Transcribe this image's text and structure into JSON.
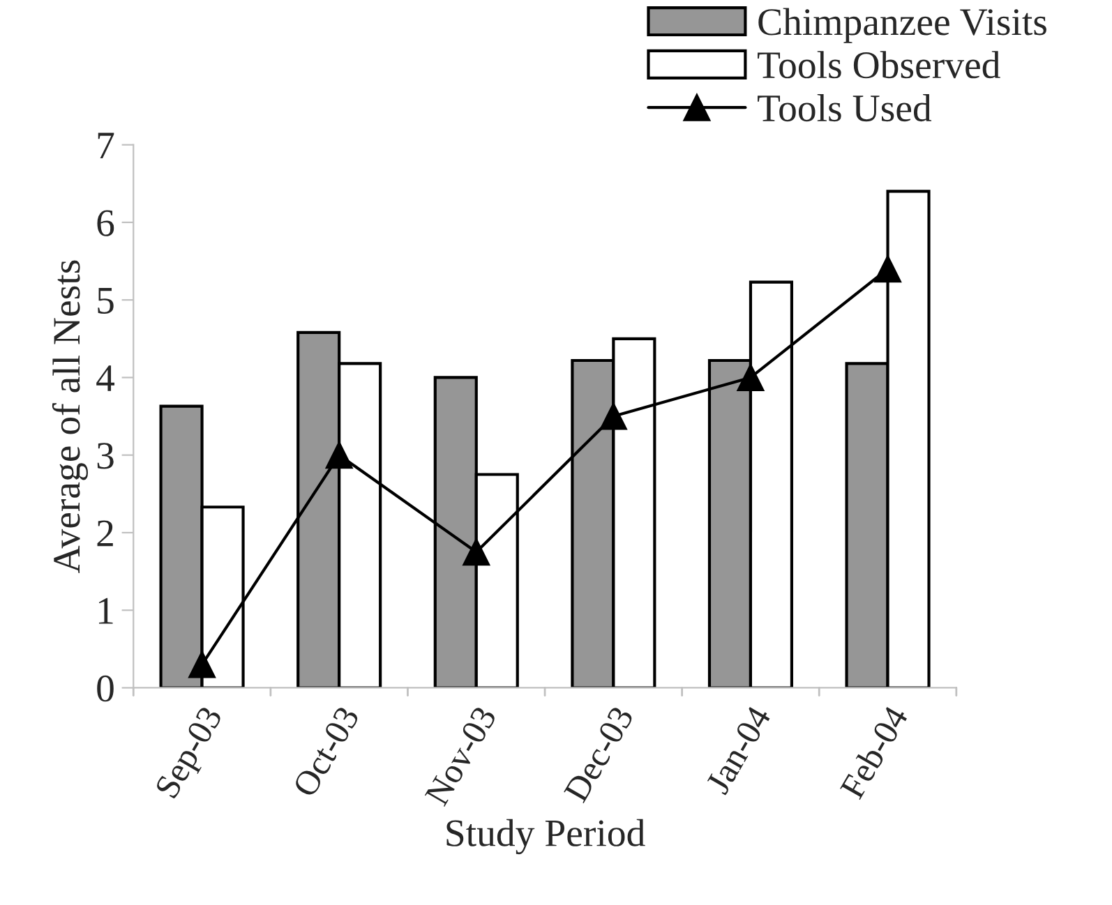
{
  "chart_data": {
    "type": "bar",
    "xlabel": "Study Period",
    "ylabel": "Average of all Nests",
    "categories": [
      "Sep-03",
      "Oct-03",
      "Nov-03",
      "Dec-03",
      "Jan-04",
      "Feb-04"
    ],
    "series": [
      {
        "name": "Chimpanzee Visits",
        "color": "#969696",
        "values": [
          3.63,
          4.58,
          4.0,
          4.22,
          4.22,
          4.18
        ]
      },
      {
        "name": "Tools Observed",
        "color": "#ffffff",
        "values": [
          2.33,
          4.18,
          2.75,
          4.5,
          5.23,
          6.4
        ]
      },
      {
        "name": "Tools Used",
        "type": "line",
        "color": "#000000",
        "marker": "triangle",
        "values": [
          0.3,
          3.0,
          1.75,
          3.5,
          4.0,
          5.4
        ]
      }
    ],
    "ylim": [
      0,
      7
    ],
    "yticks": [
      0,
      1,
      2,
      3,
      4,
      5,
      6,
      7
    ],
    "grid": false,
    "legend": "top right"
  }
}
